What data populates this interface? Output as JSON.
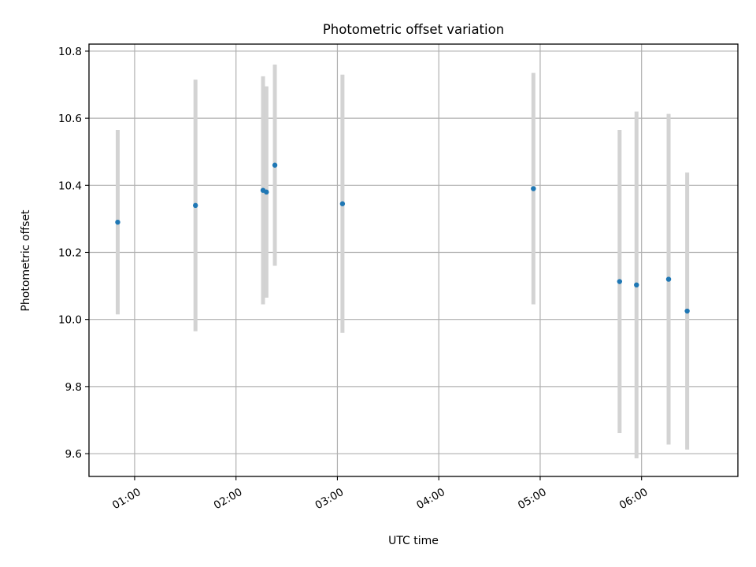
{
  "chart_data": {
    "type": "scatter",
    "title": "Photometric offset variation",
    "xlabel": "UTC time",
    "ylabel": "Photometric offset",
    "x_axis_type": "time",
    "xlim": [
      "00:33",
      "06:57"
    ],
    "ylim": [
      9.532,
      10.821
    ],
    "grid": true,
    "x_ticks": [
      "01:00",
      "02:00",
      "03:00",
      "04:00",
      "05:00",
      "06:00"
    ],
    "y_ticks": [
      "9.6",
      "9.8",
      "10.0",
      "10.2",
      "10.4",
      "10.6",
      "10.8"
    ],
    "colors": {
      "point": "#1f77b4",
      "errorbar": "#d3d3d3"
    },
    "points": [
      {
        "x": "00:50",
        "y": 10.29,
        "yerr": 0.275
      },
      {
        "x": "01:36",
        "y": 10.34,
        "yerr": 0.375
      },
      {
        "x": "02:16",
        "y": 10.385,
        "yerr": 0.34
      },
      {
        "x": "02:18",
        "y": 10.38,
        "yerr": 0.315
      },
      {
        "x": "02:23",
        "y": 10.46,
        "yerr": 0.3
      },
      {
        "x": "03:03",
        "y": 10.345,
        "yerr": 0.385
      },
      {
        "x": "04:56",
        "y": 10.39,
        "yerr": 0.345
      },
      {
        "x": "05:47",
        "y": 10.113,
        "yerr": 0.452
      },
      {
        "x": "05:57",
        "y": 10.103,
        "yerr": 0.517
      },
      {
        "x": "06:16",
        "y": 10.12,
        "yerr": 0.493
      },
      {
        "x": "06:27",
        "y": 10.025,
        "yerr": 0.413
      }
    ]
  }
}
